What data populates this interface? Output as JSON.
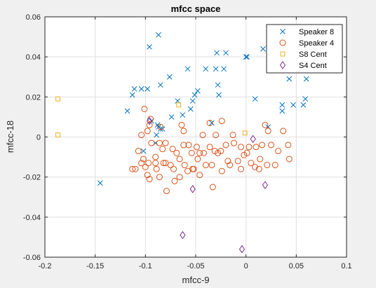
{
  "chart_data": {
    "type": "scatter",
    "title": "mfcc space",
    "xlabel": "mfcc-9",
    "ylabel": "mfcc-18",
    "xlim": [
      -0.2,
      0.1
    ],
    "ylim": [
      -0.06,
      0.06
    ],
    "xticks": [
      -0.2,
      -0.15,
      -0.1,
      -0.05,
      0,
      0.05,
      0.1
    ],
    "yticks": [
      -0.06,
      -0.04,
      -0.02,
      0,
      0.02,
      0.04,
      0.06
    ],
    "xtick_labels": [
      "-0.2",
      "-0.15",
      "-0.1",
      "-0.05",
      "0",
      "0.05",
      "0.1"
    ],
    "ytick_labels": [
      "-0.06",
      "-0.04",
      "-0.02",
      "0",
      "0.02",
      "0.04",
      "0.06"
    ],
    "grid": true,
    "legend_position": "top-right",
    "series": [
      {
        "name": "Speaker 8",
        "marker": "x",
        "color": "#0072bd",
        "points": [
          [
            -0.087,
            0.051
          ],
          [
            -0.096,
            0.045
          ],
          [
            -0.029,
            0.042
          ],
          [
            -0.02,
            0.042
          ],
          [
            0.0,
            0.04
          ],
          [
            0.001,
            0.04
          ],
          [
            0.017,
            0.044
          ],
          [
            -0.04,
            0.034
          ],
          [
            -0.03,
            0.034
          ],
          [
            -0.022,
            0.034
          ],
          [
            -0.058,
            0.034
          ],
          [
            -0.076,
            0.03
          ],
          [
            -0.085,
            0.026
          ],
          [
            -0.104,
            0.024
          ],
          [
            -0.098,
            0.024
          ],
          [
            -0.111,
            0.024
          ],
          [
            -0.113,
            0.021
          ],
          [
            -0.051,
            0.021
          ],
          [
            -0.048,
            0.023
          ],
          [
            -0.053,
            0.018
          ],
          [
            -0.068,
            0.018
          ],
          [
            -0.027,
            0.021
          ],
          [
            -0.028,
            0.026
          ],
          [
            0.043,
            0.029
          ],
          [
            0.06,
            0.029
          ],
          [
            0.009,
            0.019
          ],
          [
            0.036,
            0.016
          ],
          [
            0.036,
            0.013
          ],
          [
            0.047,
            0.016
          ],
          [
            0.057,
            0.016
          ],
          [
            0.059,
            0.019
          ],
          [
            -0.118,
            0.013
          ],
          [
            -0.094,
            0.008
          ],
          [
            -0.088,
            0.006
          ],
          [
            -0.085,
            0.004
          ],
          [
            -0.074,
            0.01
          ],
          [
            -0.063,
            0.011
          ],
          [
            -0.055,
            0.014
          ],
          [
            -0.034,
            0.007
          ],
          [
            -0.087,
            0.005
          ],
          [
            -0.083,
            0.004
          ],
          [
            -0.089,
            0.001
          ],
          [
            -0.09,
            -0.003
          ],
          [
            -0.102,
            -0.007
          ],
          [
            -0.145,
            -0.023
          ],
          [
            0.022,
            0.005
          ]
        ]
      },
      {
        "name": "Speaker 4",
        "marker": "o",
        "color": "#d95319",
        "points": [
          [
            -0.101,
            0.014
          ],
          [
            -0.095,
            0.009
          ],
          [
            -0.096,
            0.006
          ],
          [
            -0.098,
            0.003
          ],
          [
            -0.104,
            0.001
          ],
          [
            -0.085,
            0.005
          ],
          [
            -0.064,
            0.006
          ],
          [
            -0.062,
            0.003
          ],
          [
            -0.043,
            0.001
          ],
          [
            -0.036,
            0.007
          ],
          [
            -0.024,
            0.008
          ],
          [
            -0.03,
            0.001
          ],
          [
            -0.013,
            0.001
          ],
          [
            0.019,
            0.006
          ],
          [
            0.022,
            0.003
          ],
          [
            0.037,
            0.003
          ],
          [
            -0.094,
            -0.003
          ],
          [
            -0.086,
            -0.003
          ],
          [
            -0.08,
            -0.003
          ],
          [
            -0.083,
            -0.006
          ],
          [
            -0.073,
            -0.006
          ],
          [
            -0.069,
            -0.008
          ],
          [
            -0.062,
            -0.004
          ],
          [
            -0.057,
            -0.004
          ],
          [
            -0.054,
            -0.008
          ],
          [
            -0.049,
            -0.005
          ],
          [
            -0.046,
            -0.008
          ],
          [
            -0.042,
            -0.008
          ],
          [
            -0.036,
            -0.005
          ],
          [
            -0.031,
            -0.007
          ],
          [
            -0.025,
            -0.007
          ],
          [
            -0.02,
            -0.004
          ],
          [
            -0.012,
            -0.003
          ],
          [
            -0.005,
            -0.005
          ],
          [
            0.003,
            -0.005
          ],
          [
            0.01,
            -0.005
          ],
          [
            0.016,
            -0.004
          ],
          [
            0.025,
            -0.004
          ],
          [
            0.032,
            -0.007
          ],
          [
            0.042,
            -0.004
          ],
          [
            -0.107,
            -0.007
          ],
          [
            -0.11,
            -0.016
          ],
          [
            -0.104,
            -0.013
          ],
          [
            -0.1,
            -0.015
          ],
          [
            -0.098,
            -0.019
          ],
          [
            -0.096,
            -0.021
          ],
          [
            -0.09,
            -0.013
          ],
          [
            -0.089,
            -0.016
          ],
          [
            -0.086,
            -0.02
          ],
          [
            -0.082,
            -0.013
          ],
          [
            -0.08,
            -0.013
          ],
          [
            -0.075,
            -0.014
          ],
          [
            -0.072,
            -0.016
          ],
          [
            -0.066,
            -0.011
          ],
          [
            -0.061,
            -0.014
          ],
          [
            -0.058,
            -0.017
          ],
          [
            -0.052,
            -0.016
          ],
          [
            -0.048,
            -0.011
          ],
          [
            -0.046,
            -0.019
          ],
          [
            -0.04,
            -0.014
          ],
          [
            -0.034,
            -0.014
          ],
          [
            -0.028,
            -0.008
          ],
          [
            -0.024,
            -0.017
          ],
          [
            -0.018,
            -0.012
          ],
          [
            -0.008,
            -0.012
          ],
          [
            -0.005,
            -0.016
          ],
          [
            -0.002,
            -0.009
          ],
          [
            0.001,
            -0.008
          ],
          [
            0.005,
            -0.013
          ],
          [
            0.009,
            -0.015
          ],
          [
            0.014,
            -0.011
          ],
          [
            0.021,
            -0.014
          ],
          [
            0.043,
            -0.011
          ],
          [
            -0.113,
            -0.016
          ],
          [
            -0.102,
            -0.011
          ],
          [
            -0.079,
            -0.027
          ],
          [
            -0.053,
            -0.016
          ],
          [
            -0.033,
            -0.025
          ],
          [
            -0.071,
            -0.022
          ],
          [
            -0.097,
            -0.013
          ],
          [
            -0.09,
            -0.01
          ],
          [
            -0.066,
            -0.02
          ],
          [
            -0.016,
            -0.014
          ],
          [
            0.013,
            -0.016
          ],
          [
            0.029,
            -0.014
          ]
        ]
      },
      {
        "name": "S8 Cent",
        "marker": "square",
        "color": "#edb120",
        "points": [
          [
            -0.187,
            0.019
          ],
          [
            -0.187,
            0.001
          ],
          [
            -0.067,
            0.016
          ],
          [
            -0.001,
            0.002
          ]
        ]
      },
      {
        "name": "S4 Cent",
        "marker": "diamond",
        "color": "#7e2f8e",
        "points": [
          [
            -0.053,
            -0.026
          ],
          [
            -0.063,
            -0.049
          ],
          [
            -0.004,
            -0.056
          ],
          [
            0.007,
            -0.001
          ],
          [
            0.019,
            -0.024
          ],
          [
            -0.096,
            0.008
          ]
        ]
      }
    ]
  }
}
